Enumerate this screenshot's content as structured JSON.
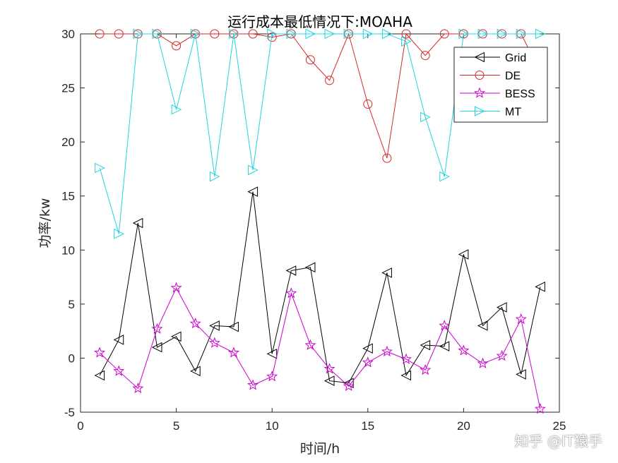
{
  "chart_data": {
    "type": "line",
    "title": "运行成本最低情况下:MOAHA",
    "xlabel": "时间/h",
    "ylabel": "功率/kw",
    "xlim": [
      0,
      25
    ],
    "ylim": [
      -5,
      30
    ],
    "xticks": [
      0,
      5,
      10,
      15,
      20,
      25
    ],
    "yticks": [
      -5,
      0,
      5,
      10,
      15,
      20,
      25,
      30
    ],
    "grid": false,
    "legend_position": "top-right",
    "x": [
      1,
      2,
      3,
      4,
      5,
      6,
      7,
      8,
      9,
      10,
      11,
      12,
      13,
      14,
      15,
      16,
      17,
      18,
      19,
      20,
      21,
      22,
      23,
      24
    ],
    "series": [
      {
        "name": "Grid",
        "color": "#000000",
        "marker": "triangle-left",
        "values": [
          -1.6,
          1.7,
          12.5,
          1.0,
          2.0,
          -1.2,
          3.0,
          2.9,
          15.4,
          0.4,
          8.1,
          8.4,
          -2.1,
          -2.3,
          0.9,
          7.9,
          -1.6,
          1.2,
          1.1,
          9.6,
          3.0,
          4.7,
          -1.5,
          6.6
        ]
      },
      {
        "name": "DE",
        "color": "#d62728",
        "marker": "circle",
        "values": [
          30,
          30,
          30,
          30,
          28.9,
          30,
          30,
          30,
          30,
          29.7,
          30,
          27.6,
          25.7,
          30,
          23.5,
          18.5,
          30,
          28,
          30,
          30,
          30,
          30,
          30,
          26.5
        ]
      },
      {
        "name": "BESS",
        "color": "#cc00cc",
        "marker": "star",
        "values": [
          0.5,
          -1.2,
          -2.8,
          2.7,
          6.5,
          3.2,
          1.4,
          0.5,
          -2.5,
          -1.7,
          6.0,
          1.2,
          -1.0,
          -2.6,
          -0.4,
          0.6,
          -0.1,
          -1.1,
          3.0,
          0.7,
          -0.5,
          0.2,
          3.6,
          -4.7
        ]
      },
      {
        "name": "MT",
        "color": "#22d4e0",
        "marker": "triangle-right",
        "values": [
          17.6,
          11.5,
          30,
          30,
          23.0,
          30,
          16.8,
          30,
          17.4,
          30,
          30,
          30,
          30,
          30,
          30,
          30,
          29.3,
          22.3,
          16.8,
          30,
          30,
          30,
          30,
          30
        ]
      }
    ]
  },
  "watermark": "知乎 @IT猿手"
}
